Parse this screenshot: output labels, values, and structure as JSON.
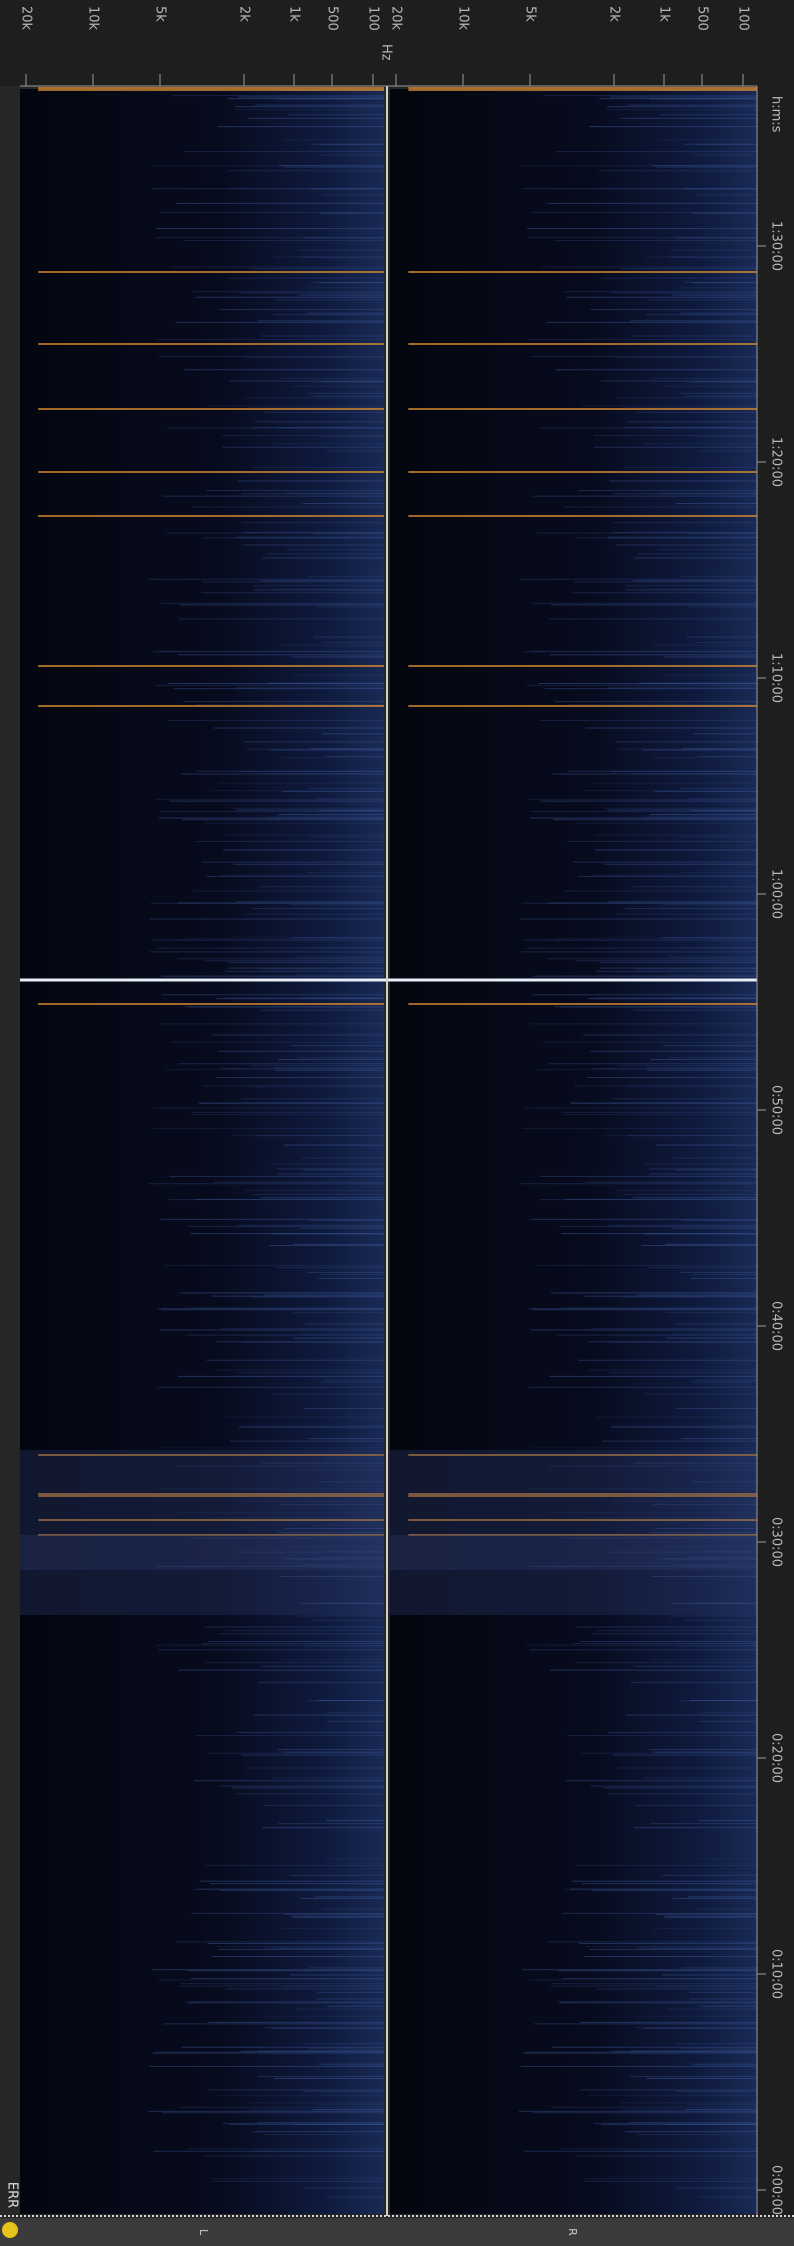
{
  "frequency_axis": {
    "labels": [
      "20k",
      "10k",
      "5k",
      "2k",
      "1k",
      "500",
      "100"
    ],
    "unit": "Hz"
  },
  "time_axis": {
    "unit": "h:m:s",
    "labels": [
      "0:00:00",
      "0:10:00",
      "0:20:00",
      "0:30:00",
      "0:40:00",
      "0:50:00",
      "1:00:00",
      "1:10:00",
      "1:20:00",
      "1:30:00"
    ]
  },
  "status": "ERR",
  "channels": [
    "L",
    "R"
  ]
}
